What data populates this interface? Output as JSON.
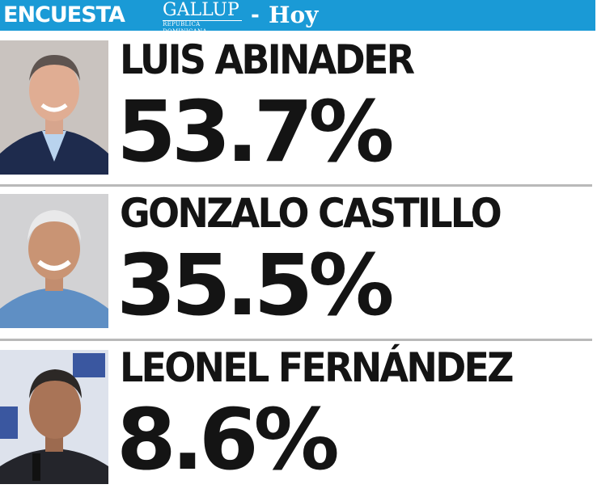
{
  "header": {
    "label": "ENCUESTA",
    "brand": "GALLUP",
    "brand_sub": "REPÚBLICA DOMINICANA",
    "dash": "-",
    "outlet": "Hoy"
  },
  "colors": {
    "accent": "#1a9ad6",
    "text": "#141414",
    "divider": "#b9b9b9"
  },
  "chart_data": {
    "type": "table",
    "title": "ENCUESTA GALLUP - Hoy",
    "categories": [
      "LUIS ABINADER",
      "GONZALO CASTILLO",
      "LEONEL FERNÁNDEZ"
    ],
    "values": [
      53.7,
      35.5,
      8.6
    ],
    "value_labels": [
      "53.7%",
      "35.5%",
      "8.6%"
    ],
    "unit": "%"
  },
  "candidates": [
    {
      "name": "LUIS ABINADER",
      "percent": "53.7%",
      "photo_icon": "candidate-photo-icon"
    },
    {
      "name": "GONZALO CASTILLO",
      "percent": "35.5%",
      "photo_icon": "candidate-photo-icon"
    },
    {
      "name": "LEONEL FERNÁNDEZ",
      "percent": "8.6%",
      "photo_icon": "candidate-photo-icon"
    }
  ]
}
